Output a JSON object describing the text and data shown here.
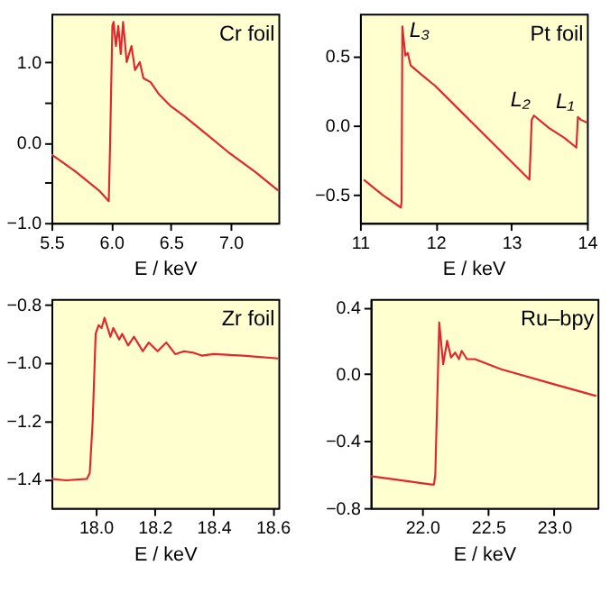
{
  "chart_data": [
    {
      "type": "line",
      "title": "Cr foil",
      "xlabel": "E / keV",
      "grid": false,
      "marker": "none",
      "line_style": "solid",
      "xlim": [
        5.5,
        7.4
      ],
      "xticks": [
        {
          "value": 5.5,
          "label": "5.5"
        },
        {
          "value": 6.0,
          "label": "6.0"
        },
        {
          "value": 6.5,
          "label": "6.5"
        },
        {
          "value": 7.0,
          "label": "7.0"
        }
      ],
      "ylim": [
        -1.0,
        1.6
      ],
      "yticks": [
        {
          "value": -1.0,
          "label": "−1.0"
        },
        {
          "value": -0.5,
          "label": null
        },
        {
          "value": 0.0,
          "label": "0.0"
        },
        {
          "value": 0.5,
          "label": null
        },
        {
          "value": 1.0,
          "label": "1.0"
        }
      ],
      "x": [
        5.5,
        5.7,
        5.9,
        5.98,
        5.99,
        6.01,
        6.02,
        6.04,
        6.06,
        6.08,
        6.1,
        6.13,
        6.17,
        6.2,
        6.24,
        6.27,
        6.33,
        6.4,
        6.5,
        6.61,
        6.8,
        6.98,
        7.2,
        7.4
      ],
      "series": [
        {
          "color": "#e3262d",
          "values": [
            -0.15,
            -0.36,
            -0.6,
            -0.73,
            -0.1,
            1.45,
            1.5,
            1.2,
            1.45,
            1.1,
            1.5,
            1.0,
            1.2,
            0.9,
            1.0,
            0.8,
            0.75,
            0.6,
            0.45,
            0.33,
            0.1,
            -0.12,
            -0.36,
            -0.6
          ]
        }
      ]
    },
    {
      "type": "line",
      "title": "Pt foil",
      "xlabel": "E / keV",
      "grid": false,
      "marker": "none",
      "line_style": "solid",
      "xlim": [
        11,
        14
      ],
      "xticks": [
        {
          "value": 11,
          "label": "11"
        },
        {
          "value": 12,
          "label": "12"
        },
        {
          "value": 13,
          "label": "13"
        },
        {
          "value": 14,
          "label": "14"
        }
      ],
      "ylim": [
        -0.7,
        0.8
      ],
      "yticks": [
        {
          "value": -0.5,
          "label": "−0.5"
        },
        {
          "value": 0.0,
          "label": "0.0"
        },
        {
          "value": 0.5,
          "label": "0.5"
        }
      ],
      "annotations": [
        {
          "text": "L₃",
          "x": 11.56,
          "y": 0.71
        },
        {
          "text": "L₂",
          "x": 13.3,
          "y": 0.07
        },
        {
          "text": "L₁",
          "x": 13.88,
          "y": 0.06
        }
      ],
      "x": [
        11.05,
        11.3,
        11.54,
        11.55,
        11.56,
        11.6,
        11.63,
        11.67,
        11.8,
        12.0,
        12.5,
        13.0,
        13.24,
        13.27,
        13.3,
        13.5,
        13.7,
        13.86,
        13.88,
        13.92,
        14.0
      ],
      "series": [
        {
          "color": "#e3262d",
          "values": [
            -0.39,
            -0.5,
            -0.59,
            -0.55,
            0.71,
            0.5,
            0.52,
            0.43,
            0.37,
            0.28,
            0.01,
            -0.26,
            -0.39,
            0.04,
            0.07,
            -0.02,
            -0.09,
            -0.16,
            0.06,
            0.04,
            0.02
          ]
        }
      ]
    },
    {
      "type": "line",
      "title": "Zr foil",
      "xlabel": "E / keV",
      "grid": false,
      "marker": "none",
      "line_style": "solid",
      "xlim": [
        17.85,
        18.62
      ],
      "xticks": [
        {
          "value": 18.0,
          "label": "18.0"
        },
        {
          "value": 18.2,
          "label": "18.2"
        },
        {
          "value": 18.4,
          "label": "18.4"
        },
        {
          "value": 18.6,
          "label": "18.6"
        }
      ],
      "ylim": [
        -1.5,
        -0.78
      ],
      "yticks": [
        {
          "value": -1.4,
          "label": "−1.4"
        },
        {
          "value": -1.2,
          "label": "−1.2"
        },
        {
          "value": -1.0,
          "label": "−1.0"
        },
        {
          "value": -0.8,
          "label": "−0.8"
        }
      ],
      "x": [
        17.85,
        17.9,
        17.97,
        17.98,
        17.99,
        18.0,
        18.01,
        18.02,
        18.03,
        18.05,
        18.06,
        18.08,
        18.09,
        18.11,
        18.13,
        18.16,
        18.18,
        18.21,
        18.24,
        18.27,
        18.3,
        18.33,
        18.36,
        18.4,
        18.5,
        18.62
      ],
      "series": [
        {
          "color": "#e3262d",
          "values": [
            -1.4,
            -1.405,
            -1.4,
            -1.38,
            -1.2,
            -0.9,
            -0.87,
            -0.88,
            -0.845,
            -0.91,
            -0.88,
            -0.92,
            -0.9,
            -0.94,
            -0.91,
            -0.96,
            -0.93,
            -0.96,
            -0.93,
            -0.97,
            -0.96,
            -0.965,
            -0.975,
            -0.97,
            -0.975,
            -0.985
          ]
        }
      ]
    },
    {
      "type": "line",
      "title": "Ru–bpy",
      "xlabel": "E / keV",
      "grid": false,
      "marker": "none",
      "line_style": "solid",
      "xlim": [
        21.61,
        23.33
      ],
      "xticks": [
        {
          "value": 22.0,
          "label": "22.0"
        },
        {
          "value": 22.5,
          "label": "22.5"
        },
        {
          "value": 23.0,
          "label": "23.0"
        }
      ],
      "ylim": [
        -0.8,
        0.45
      ],
      "yticks": [
        {
          "value": -0.8,
          "label": "−0.8"
        },
        {
          "value": -0.4,
          "label": "−0.4"
        },
        {
          "value": 0.0,
          "label": "0.0"
        },
        {
          "value": 0.4,
          "label": "0.4"
        }
      ],
      "x": [
        21.61,
        21.8,
        22.07,
        22.09,
        22.1,
        22.12,
        22.13,
        22.16,
        22.19,
        22.22,
        22.25,
        22.28,
        22.3,
        22.34,
        22.4,
        22.6,
        23.0,
        23.32
      ],
      "series": [
        {
          "color": "#e3262d",
          "values": [
            -0.61,
            -0.63,
            -0.66,
            -0.66,
            -0.6,
            0.0,
            0.31,
            0.06,
            0.2,
            0.1,
            0.13,
            0.09,
            0.14,
            0.09,
            0.09,
            0.03,
            -0.06,
            -0.13
          ]
        }
      ]
    }
  ]
}
